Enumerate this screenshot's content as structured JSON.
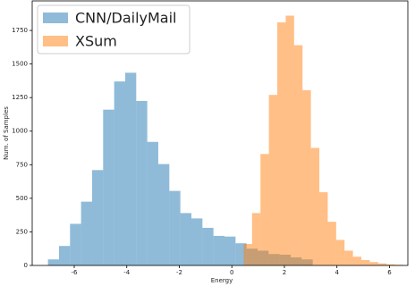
{
  "chart_data": {
    "type": "histogram",
    "xlabel": "Energy",
    "ylabel": "Num. of Samples",
    "xlim": [
      -7.6,
      6.7
    ],
    "ylim": [
      0,
      1970
    ],
    "xticks": [
      -6,
      -4,
      -2,
      0,
      2,
      4,
      6
    ],
    "yticks": [
      0,
      250,
      500,
      750,
      1000,
      1250,
      1500,
      1750
    ],
    "legend": "upper left",
    "series": [
      {
        "name": "CNN/DailyMail",
        "color": "#1f77b4",
        "opacity": 0.5,
        "bins": [
          -7.0,
          -6.58,
          -6.16,
          -5.74,
          -5.32,
          -4.9,
          -4.48,
          -4.06,
          -3.64,
          -3.22,
          -2.8,
          -2.38,
          -1.96,
          -1.54,
          -1.12,
          -0.7,
          -0.28,
          0.14,
          0.56,
          0.98,
          1.4,
          1.82,
          2.24,
          2.66,
          3.08
        ],
        "values": [
          45,
          145,
          310,
          475,
          710,
          1160,
          1370,
          1435,
          1225,
          920,
          755,
          555,
          390,
          350,
          280,
          220,
          215,
          165,
          125,
          110,
          85,
          80,
          60,
          45
        ]
      },
      {
        "name": "XSum",
        "color": "#ff7f0e",
        "opacity": 0.5,
        "bins": [
          0.45,
          0.77,
          1.09,
          1.41,
          1.73,
          2.05,
          2.37,
          2.69,
          3.01,
          3.33,
          3.65,
          3.97,
          4.29,
          4.61,
          4.93,
          5.25,
          5.57,
          5.89,
          6.21,
          6.53
        ],
        "values": [
          160,
          390,
          830,
          1270,
          1810,
          1860,
          1640,
          1305,
          875,
          545,
          325,
          190,
          110,
          65,
          40,
          25,
          15,
          8,
          5
        ]
      }
    ]
  }
}
